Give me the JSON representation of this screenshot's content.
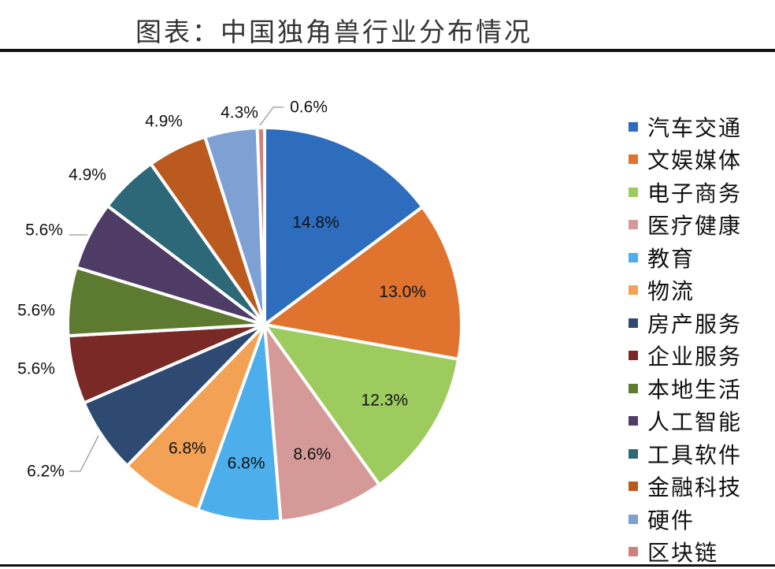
{
  "title": "图表：中国独角兽行业分布情况",
  "chart_data": {
    "type": "pie",
    "title": "图表：中国独角兽行业分布情况",
    "legend_position": "right",
    "slices": [
      {
        "label": "汽车交通",
        "value": 14.8,
        "value_label": "14.8%",
        "color": "#2E6DBE"
      },
      {
        "label": "文娱媒体",
        "value": 13.0,
        "value_label": "13.0%",
        "color": "#E0742F"
      },
      {
        "label": "电子商务",
        "value": 12.3,
        "value_label": "12.3%",
        "color": "#9DCB5D"
      },
      {
        "label": "医疗健康",
        "value": 8.6,
        "value_label": "8.6%",
        "color": "#D59A98"
      },
      {
        "label": "教育",
        "value": 6.8,
        "value_label": "6.8%",
        "color": "#4CAEEA"
      },
      {
        "label": "物流",
        "value": 6.8,
        "value_label": "6.8%",
        "color": "#F3A154"
      },
      {
        "label": "房产服务",
        "value": 6.2,
        "value_label": "6.2%",
        "color": "#2F4A72"
      },
      {
        "label": "企业服务",
        "value": 5.6,
        "value_label": "5.6%",
        "color": "#7A2A26"
      },
      {
        "label": "本地生活",
        "value": 5.6,
        "value_label": "5.6%",
        "color": "#5C7A30"
      },
      {
        "label": "人工智能",
        "value": 5.6,
        "value_label": "5.6%",
        "color": "#4E3B66"
      },
      {
        "label": "工具软件",
        "value": 4.9,
        "value_label": "4.9%",
        "color": "#2C6878"
      },
      {
        "label": "金融科技",
        "value": 4.9,
        "value_label": "4.9%",
        "color": "#BA5A1E"
      },
      {
        "label": "硬件",
        "value": 4.3,
        "value_label": "4.3%",
        "color": "#7FA0D2"
      },
      {
        "label": "区块链",
        "value": 0.6,
        "value_label": "0.6%",
        "color": "#D0807A"
      }
    ]
  }
}
